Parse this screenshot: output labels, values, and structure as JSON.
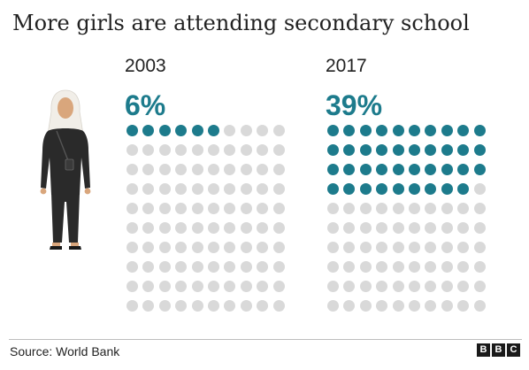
{
  "title": "More girls are attending secondary school",
  "source": "Source: World Bank",
  "logo": [
    "B",
    "B",
    "C"
  ],
  "colors": {
    "filled": "#1d7b8c",
    "empty": "#d9d9d9",
    "figure_clothing": "#2a2a2a",
    "headscarf": "#f1eee8",
    "skin": "#d9a67c"
  },
  "icons": {
    "figure": "woman-figure-icon"
  },
  "chart_data": [
    {
      "type": "waffle",
      "year": "2003",
      "label": "6%",
      "value": 6,
      "total": 100,
      "grid": [
        10,
        10
      ]
    },
    {
      "type": "waffle",
      "year": "2017",
      "label": "39%",
      "value": 39,
      "total": 100,
      "grid": [
        10,
        10
      ]
    }
  ]
}
